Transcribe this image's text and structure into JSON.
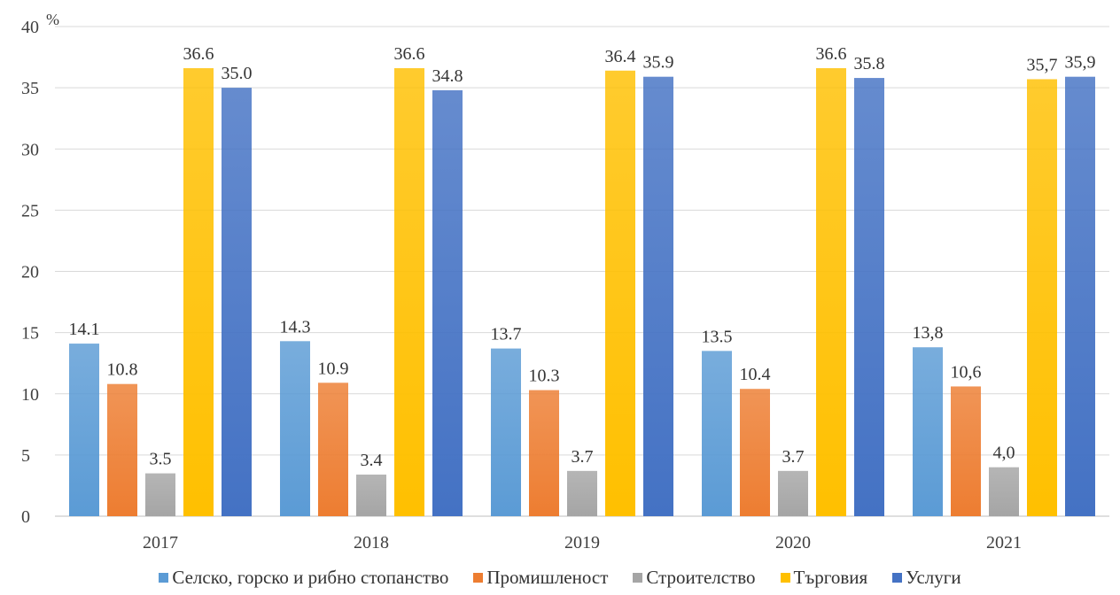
{
  "chart_data": {
    "type": "bar",
    "unit_label": "%",
    "categories": [
      "2017",
      "2018",
      "2019",
      "2020",
      "2021"
    ],
    "ylim": [
      0,
      40
    ],
    "yticks": [
      "0",
      "5",
      "10",
      "15",
      "20",
      "25",
      "30",
      "35",
      "40"
    ],
    "grid": true,
    "legend_position": "bottom",
    "series": [
      {
        "name": "Селско, горско и рибно стопанство",
        "color": "#5B9BD5",
        "values": [
          14.1,
          14.3,
          13.7,
          13.5,
          13.8
        ],
        "labels": [
          "14.1",
          "14.3",
          "13.7",
          "13.5",
          "13,8"
        ]
      },
      {
        "name": "Промишленост",
        "color": "#ED7D31",
        "values": [
          10.8,
          10.9,
          10.3,
          10.4,
          10.6
        ],
        "labels": [
          "10.8",
          "10.9",
          "10.3",
          "10.4",
          "10,6"
        ]
      },
      {
        "name": "Строителство",
        "color": "#A5A5A5",
        "values": [
          3.5,
          3.4,
          3.7,
          3.7,
          4.0
        ],
        "labels": [
          "3.5",
          "3.4",
          "3.7",
          "3.7",
          "4,0"
        ]
      },
      {
        "name": "Търговия",
        "color": "#FFC000",
        "values": [
          36.6,
          36.6,
          36.4,
          36.6,
          35.7
        ],
        "labels": [
          "36.6",
          "36.6",
          "36.4",
          "36.6",
          "35,7"
        ]
      },
      {
        "name": "Услуги",
        "color": "#4472C4",
        "values": [
          35.0,
          34.8,
          35.9,
          35.8,
          35.9
        ],
        "labels": [
          "35.0",
          "34.8",
          "35.9",
          "35.8",
          "35,9"
        ]
      }
    ]
  }
}
